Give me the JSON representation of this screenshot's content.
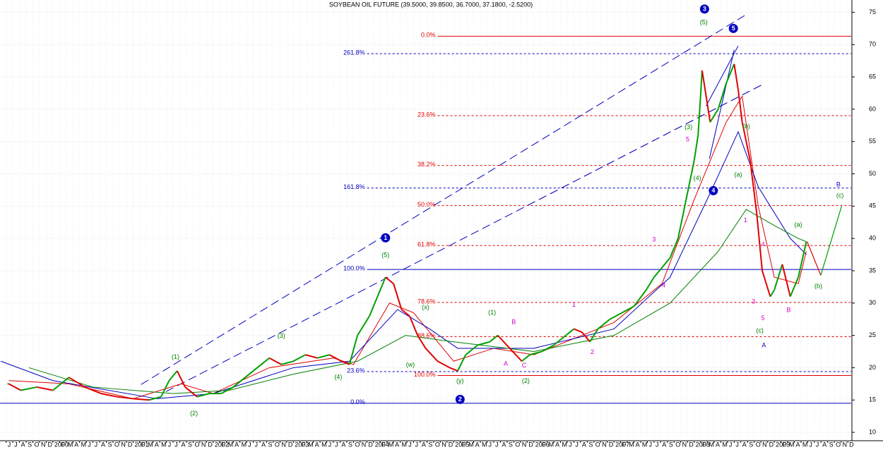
{
  "chart_data": {
    "type": "price",
    "title": "SOYBEAN OIL FUTURE (39.5000, 39.8500, 36.7000, 37.1800, -2.5200)",
    "xlim": [
      1999.34,
      2009.96
    ],
    "ylim": [
      8.7,
      76.9
    ],
    "yticks": [
      10,
      15,
      20,
      25,
      30,
      35,
      40,
      45,
      50,
      55,
      60,
      65,
      70,
      75
    ],
    "grid": true,
    "xticks": [
      {
        "value": 1999.417,
        "label": "J"
      },
      {
        "value": 1999.5,
        "label": "J"
      },
      {
        "value": 1999.583,
        "label": "A"
      },
      {
        "value": 1999.667,
        "label": "S"
      },
      {
        "value": 1999.75,
        "label": "O"
      },
      {
        "value": 1999.833,
        "label": "N"
      },
      {
        "value": 1999.917,
        "label": "D"
      },
      2000,
      {
        "value": 2000.083,
        "label": "F"
      },
      {
        "value": 2000.167,
        "label": "M"
      },
      {
        "value": 2000.25,
        "label": "A"
      },
      {
        "value": 2000.333,
        "label": "M"
      },
      {
        "value": 2000.417,
        "label": "J"
      },
      {
        "value": 2000.5,
        "label": "J"
      },
      {
        "value": 2000.583,
        "label": "A"
      },
      {
        "value": 2000.667,
        "label": "S"
      },
      {
        "value": 2000.75,
        "label": "O"
      },
      {
        "value": 2000.833,
        "label": "N"
      },
      {
        "value": 2000.917,
        "label": "D"
      },
      2001,
      {
        "value": 2001.083,
        "label": "F"
      },
      {
        "value": 2001.167,
        "label": "M"
      },
      {
        "value": 2001.25,
        "label": "A"
      },
      {
        "value": 2001.333,
        "label": "M"
      },
      {
        "value": 2001.417,
        "label": "J"
      },
      {
        "value": 2001.5,
        "label": "J"
      },
      {
        "value": 2001.583,
        "label": "A"
      },
      {
        "value": 2001.667,
        "label": "S"
      },
      {
        "value": 2001.75,
        "label": "O"
      },
      {
        "value": 2001.833,
        "label": "N"
      },
      {
        "value": 2001.917,
        "label": "D"
      },
      2002,
      {
        "value": 2002.083,
        "label": "F"
      },
      {
        "value": 2002.167,
        "label": "M"
      },
      {
        "value": 2002.25,
        "label": "A"
      },
      {
        "value": 2002.333,
        "label": "M"
      },
      {
        "value": 2002.417,
        "label": "J"
      },
      {
        "value": 2002.5,
        "label": "J"
      },
      {
        "value": 2002.583,
        "label": "A"
      },
      {
        "value": 2002.667,
        "label": "S"
      },
      {
        "value": 2002.75,
        "label": "O"
      },
      {
        "value": 2002.833,
        "label": "N"
      },
      {
        "value": 2002.917,
        "label": "D"
      },
      2003,
      {
        "value": 2003.083,
        "label": "F"
      },
      {
        "value": 2003.167,
        "label": "M"
      },
      {
        "value": 2003.25,
        "label": "A"
      },
      {
        "value": 2003.333,
        "label": "M"
      },
      {
        "value": 2003.417,
        "label": "J"
      },
      {
        "value": 2003.5,
        "label": "J"
      },
      {
        "value": 2003.583,
        "label": "A"
      },
      {
        "value": 2003.667,
        "label": "S"
      },
      {
        "value": 2003.75,
        "label": "O"
      },
      {
        "value": 2003.833,
        "label": "N"
      },
      {
        "value": 2003.917,
        "label": "D"
      },
      2004,
      {
        "value": 2004.083,
        "label": "F"
      },
      {
        "value": 2004.167,
        "label": "M"
      },
      {
        "value": 2004.25,
        "label": "A"
      },
      {
        "value": 2004.333,
        "label": "M"
      },
      {
        "value": 2004.417,
        "label": "J"
      },
      {
        "value": 2004.5,
        "label": "J"
      },
      {
        "value": 2004.583,
        "label": "A"
      },
      {
        "value": 2004.667,
        "label": "S"
      },
      {
        "value": 2004.75,
        "label": "O"
      },
      {
        "value": 2004.833,
        "label": "N"
      },
      {
        "value": 2004.917,
        "label": "D"
      },
      2005,
      {
        "value": 2005.083,
        "label": "F"
      },
      {
        "value": 2005.167,
        "label": "M"
      },
      {
        "value": 2005.25,
        "label": "A"
      },
      {
        "value": 2005.333,
        "label": "M"
      },
      {
        "value": 2005.417,
        "label": "J"
      },
      {
        "value": 2005.5,
        "label": "J"
      },
      {
        "value": 2005.583,
        "label": "A"
      },
      {
        "value": 2005.667,
        "label": "S"
      },
      {
        "value": 2005.75,
        "label": "O"
      },
      {
        "value": 2005.833,
        "label": "N"
      },
      {
        "value": 2005.917,
        "label": "D"
      },
      2006,
      {
        "value": 2006.083,
        "label": "F"
      },
      {
        "value": 2006.167,
        "label": "M"
      },
      {
        "value": 2006.25,
        "label": "A"
      },
      {
        "value": 2006.333,
        "label": "M"
      },
      {
        "value": 2006.417,
        "label": "J"
      },
      {
        "value": 2006.5,
        "label": "J"
      },
      {
        "value": 2006.583,
        "label": "A"
      },
      {
        "value": 2006.667,
        "label": "S"
      },
      {
        "value": 2006.75,
        "label": "O"
      },
      {
        "value": 2006.833,
        "label": "N"
      },
      {
        "value": 2006.917,
        "label": "D"
      },
      2007,
      {
        "value": 2007.083,
        "label": "F"
      },
      {
        "value": 2007.167,
        "label": "M"
      },
      {
        "value": 2007.25,
        "label": "A"
      },
      {
        "value": 2007.333,
        "label": "M"
      },
      {
        "value": 2007.417,
        "label": "J"
      },
      {
        "value": 2007.5,
        "label": "J"
      },
      {
        "value": 2007.583,
        "label": "A"
      },
      {
        "value": 2007.667,
        "label": "S"
      },
      {
        "value": 2007.75,
        "label": "O"
      },
      {
        "value": 2007.833,
        "label": "N"
      },
      {
        "value": 2007.917,
        "label": "D"
      },
      2008,
      {
        "value": 2008.083,
        "label": "F"
      },
      {
        "value": 2008.167,
        "label": "M"
      },
      {
        "value": 2008.25,
        "label": "A"
      },
      {
        "value": 2008.333,
        "label": "M"
      },
      {
        "value": 2008.417,
        "label": "J"
      },
      {
        "value": 2008.5,
        "label": "J"
      },
      {
        "value": 2008.583,
        "label": "A"
      },
      {
        "value": 2008.667,
        "label": "S"
      },
      {
        "value": 2008.75,
        "label": "O"
      },
      {
        "value": 2008.833,
        "label": "N"
      },
      {
        "value": 2008.917,
        "label": "D"
      },
      2009,
      {
        "value": 2009.083,
        "label": "F"
      },
      {
        "value": 2009.167,
        "label": "M"
      },
      {
        "value": 2009.25,
        "label": "A"
      },
      {
        "value": 2009.333,
        "label": "M"
      },
      {
        "value": 2009.417,
        "label": "J"
      },
      {
        "value": 2009.5,
        "label": "J"
      },
      {
        "value": 2009.583,
        "label": "A"
      },
      {
        "value": 2009.667,
        "label": "S"
      },
      {
        "value": 2009.75,
        "label": "O"
      },
      {
        "value": 2009.833,
        "label": "N"
      },
      {
        "value": 2009.917,
        "label": "D"
      }
    ],
    "price": {
      "up_color": "#00a000",
      "down_color": "#e00000",
      "x": [
        1999.45,
        1999.6,
        1999.8,
        2000.0,
        2000.2,
        2000.4,
        2000.6,
        2000.8,
        2001.0,
        2001.2,
        2001.35,
        2001.45,
        2001.55,
        2001.65,
        2001.8,
        2001.95,
        2002.1,
        2002.25,
        2002.4,
        2002.55,
        2002.7,
        2002.85,
        2003.0,
        2003.15,
        2003.3,
        2003.45,
        2003.6,
        2003.7,
        2003.8,
        2003.95,
        2004.05,
        2004.15,
        2004.25,
        2004.35,
        2004.45,
        2004.55,
        2004.65,
        2004.8,
        2004.95,
        2005.05,
        2005.15,
        2005.3,
        2005.45,
        2005.55,
        2005.7,
        2005.85,
        2005.95,
        2006.1,
        2006.25,
        2006.4,
        2006.5,
        2006.6,
        2006.7,
        2006.8,
        2006.95,
        2007.1,
        2007.25,
        2007.4,
        2007.5,
        2007.6,
        2007.7,
        2007.8,
        2007.9,
        2008.0,
        2008.05,
        2008.1,
        2008.2,
        2008.3,
        2008.4,
        2008.5,
        2008.55,
        2008.6,
        2008.7,
        2008.78,
        2008.85,
        2008.95,
        2009.0,
        2009.1,
        2009.2,
        2009.3,
        2009.4
      ],
      "values": [
        17.5,
        16.5,
        17,
        16.5,
        18.5,
        17,
        16,
        15.5,
        15.2,
        15,
        15.5,
        18,
        19.5,
        17,
        15.5,
        16,
        16,
        17,
        18.5,
        20,
        21.5,
        20.5,
        21,
        22,
        21.5,
        22,
        21,
        20.5,
        25,
        28,
        31,
        34,
        33,
        29,
        28,
        25,
        23,
        21,
        20,
        19.5,
        22,
        23.5,
        24,
        25,
        23,
        21,
        22,
        22.5,
        23.5,
        25,
        26,
        25.5,
        24,
        26,
        27.5,
        28.5,
        29.5,
        32,
        34,
        35.5,
        37,
        40,
        46,
        52,
        56,
        66,
        58,
        60,
        64,
        67,
        63,
        58,
        52,
        44,
        35,
        31,
        32,
        36,
        31,
        34,
        39.5
      ]
    },
    "moving_averages": [
      {
        "color": "#e00000",
        "x": [
          1999.45,
          2000.2,
          2001.0,
          2001.6,
          2002.0,
          2002.7,
          2003.5,
          2003.75,
          2004.2,
          2004.5,
          2005.0,
          2005.5,
          2006.0,
          2006.5,
          2007.0,
          2007.6,
          2008.0,
          2008.4,
          2008.6,
          2008.8,
          2009.0,
          2009.3,
          2009.4
        ],
        "values": [
          18,
          17.5,
          15.2,
          17.5,
          16,
          20,
          21.5,
          20.5,
          30,
          28.5,
          21,
          23,
          22,
          24.5,
          27,
          33,
          46,
          58,
          62,
          45,
          34,
          33,
          38
        ]
      },
      {
        "color": "#0000c0",
        "x": [
          1999.35,
          2000.0,
          2001.3,
          2002.0,
          2003.0,
          2003.7,
          2004.3,
          2004.7,
          2005.05,
          2006.0,
          2007.0,
          2007.7,
          2008.2,
          2008.55,
          2008.8,
          2009.2,
          2009.4
        ],
        "values": [
          21,
          18,
          15.2,
          16,
          20,
          21,
          29,
          26,
          23,
          23,
          26,
          34,
          47,
          56.5,
          48,
          40,
          37.5
        ]
      },
      {
        "color": "#008000",
        "x": [
          1999.7,
          2000.5,
          2001.5,
          2002.2,
          2003.0,
          2003.8,
          2004.4,
          2005.0,
          2006.0,
          2007.0,
          2007.7,
          2008.3,
          2008.65,
          2009.0,
          2009.3,
          2009.4
        ],
        "values": [
          20,
          17,
          16,
          16.5,
          19,
          21,
          25,
          24,
          22.5,
          25,
          30,
          38,
          44.5,
          42,
          40,
          39.5
        ]
      }
    ],
    "projections": [
      {
        "color": "#e00000",
        "x": [
          2009.41,
          2009.58
        ],
        "values": [
          39.5,
          34.3
        ]
      },
      {
        "color": "#00a000",
        "x": [
          2009.58,
          2009.84
        ],
        "values": [
          34.3,
          45.0
        ]
      }
    ],
    "fib_groups": [
      {
        "color": "#e00000",
        "anchor": 2004.8,
        "levels": [
          {
            "label": "0.0%",
            "price": 71.3,
            "dashed": false
          },
          {
            "label": "23.6%",
            "price": 59.0,
            "dashed": true
          },
          {
            "label": "38.2%",
            "price": 51.3,
            "dashed": true
          },
          {
            "label": "50.0%",
            "price": 45.1,
            "dashed": true
          },
          {
            "label": "61.8%",
            "price": 38.9,
            "dashed": true
          },
          {
            "label": "78.6%",
            "price": 30.1,
            "dashed": true
          },
          {
            "label": "88.6%",
            "price": 24.8,
            "dashed": true
          },
          {
            "label": "100.0%",
            "price": 18.8,
            "dashed": false
          }
        ]
      },
      {
        "color": "#0000c0",
        "anchor": 2003.92,
        "levels": [
          {
            "label": "261.8%",
            "price": 68.6,
            "dashed": true
          },
          {
            "label": "161.8%",
            "price": 47.8,
            "dashed": true
          },
          {
            "label": "100.0%",
            "price": 35.2,
            "dashed": false
          },
          {
            "label": "23.6%",
            "price": 19.4,
            "dashed": true
          },
          {
            "label": "0.0%",
            "price": 14.5,
            "dashed": false,
            "from": 1999.34
          }
        ]
      }
    ],
    "trendlines": [
      {
        "color": "#0000c0",
        "dashed": true,
        "x": [
          2001.1,
          2008.63
        ],
        "values": [
          17.4,
          74.5
        ]
      },
      {
        "color": "#0000c0",
        "dashed": true,
        "x": [
          2001.41,
          2008.85
        ],
        "values": [
          16.3,
          63.8
        ]
      },
      {
        "color": "#0000c0",
        "dashed": false,
        "x": [
          2008.15,
          2008.55
        ],
        "values": [
          60.5,
          69.8
        ]
      },
      {
        "color": "#0000c0",
        "dashed": false,
        "x": [
          2008.19,
          2008.5
        ],
        "values": [
          52.3,
          69.2
        ]
      }
    ],
    "wave_labels": [
      {
        "text": "(5)",
        "x": 2004.15,
        "y": 37.4,
        "color": "#008000"
      },
      {
        "text": "(1)",
        "x": 2001.53,
        "y": 21.6,
        "color": "#008000"
      },
      {
        "text": "(2)",
        "x": 2001.76,
        "y": 12.9,
        "color": "#008000"
      },
      {
        "text": "(3)",
        "x": 2002.85,
        "y": 24.9,
        "color": "#008000"
      },
      {
        "text": "(4)",
        "x": 2003.56,
        "y": 18.5,
        "color": "#008000"
      },
      {
        "text": "(w)",
        "x": 2004.46,
        "y": 20.4,
        "color": "#008000"
      },
      {
        "text": "(x)",
        "x": 2004.65,
        "y": 29.3,
        "color": "#008000"
      },
      {
        "text": "(y)",
        "x": 2005.08,
        "y": 17.9,
        "color": "#008000"
      },
      {
        "text": "(1)",
        "x": 2005.48,
        "y": 28.5,
        "color": "#008000"
      },
      {
        "text": "B",
        "x": 2005.75,
        "y": 27.0,
        "color": "#cc00cc"
      },
      {
        "text": "A",
        "x": 2005.65,
        "y": 20.6,
        "color": "#cc00cc"
      },
      {
        "text": "C",
        "x": 2005.88,
        "y": 20.3,
        "color": "#cc00cc"
      },
      {
        "text": "(2)",
        "x": 2005.9,
        "y": 17.9,
        "color": "#008000"
      },
      {
        "text": "1",
        "x": 2006.5,
        "y": 29.7,
        "color": "#cc00cc"
      },
      {
        "text": "2",
        "x": 2006.73,
        "y": 22.4,
        "color": "#cc00cc"
      },
      {
        "text": "3",
        "x": 2007.5,
        "y": 39.8,
        "color": "#cc00cc"
      },
      {
        "text": "4",
        "x": 2007.62,
        "y": 32.7,
        "color": "#cc00cc"
      },
      {
        "text": "5",
        "x": 2007.92,
        "y": 55.3,
        "color": "#cc00cc"
      },
      {
        "text": "(3)",
        "x": 2007.93,
        "y": 57.2,
        "color": "#008000"
      },
      {
        "text": "(5)",
        "x": 2008.12,
        "y": 73.4,
        "color": "#008000"
      },
      {
        "text": "(4)",
        "x": 2008.04,
        "y": 49.3,
        "color": "#008000"
      },
      {
        "text": "(a)",
        "x": 2008.55,
        "y": 49.8,
        "color": "#008000"
      },
      {
        "text": "(b)",
        "x": 2008.65,
        "y": 57.3,
        "color": "#008000"
      },
      {
        "text": "(c)",
        "x": 2008.82,
        "y": 25.7,
        "color": "#008000"
      },
      {
        "text": "1",
        "x": 2008.64,
        "y": 42.8,
        "color": "#cc00cc"
      },
      {
        "text": "3",
        "x": 2008.74,
        "y": 30.2,
        "color": "#cc00cc"
      },
      {
        "text": "4",
        "x": 2008.86,
        "y": 39.0,
        "color": "#cc00cc"
      },
      {
        "text": "5",
        "x": 2008.86,
        "y": 27.6,
        "color": "#cc00cc"
      },
      {
        "text": "B",
        "x": 2009.18,
        "y": 28.9,
        "color": "#cc00cc"
      },
      {
        "text": "(a)",
        "x": 2009.3,
        "y": 42.1,
        "color": "#008000"
      },
      {
        "text": "(b)",
        "x": 2009.55,
        "y": 32.6,
        "color": "#008000"
      },
      {
        "text": "(c)",
        "x": 2009.82,
        "y": 46.6,
        "color": "#008000"
      }
    ],
    "major_labels": [
      {
        "text": "A",
        "x": 2008.87,
        "y": 23.4,
        "color": "#0000c0"
      },
      {
        "text": "B",
        "x": 2009.8,
        "y": 48.3,
        "color": "#0000c0"
      }
    ],
    "wave_circles": [
      {
        "text": "1",
        "x": 2004.15,
        "y": 40.1
      },
      {
        "text": "2",
        "x": 2005.08,
        "y": 15.1
      },
      {
        "text": "3",
        "x": 2008.13,
        "y": 75.5
      },
      {
        "text": "4",
        "x": 2008.24,
        "y": 47.4
      },
      {
        "text": "5",
        "x": 2008.49,
        "y": 72.5
      }
    ]
  }
}
